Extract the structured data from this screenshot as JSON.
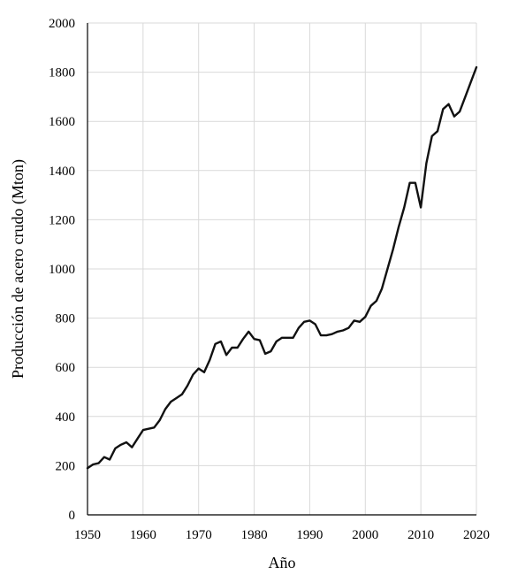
{
  "chart_data": {
    "type": "line",
    "title": "",
    "xlabel": "Año",
    "ylabel": "Producción de acero crudo (Mton)",
    "xlim": [
      1950,
      2020
    ],
    "ylim": [
      0,
      2000
    ],
    "x_ticks": [
      "1950",
      "1960",
      "1970",
      "1980",
      "1990",
      "2000",
      "2010",
      "2020"
    ],
    "y_ticks": [
      "0",
      "200",
      "400",
      "600",
      "800",
      "1000",
      "1200",
      "1400",
      "1600",
      "1800",
      "2000"
    ],
    "grid": true,
    "legend": "none",
    "series": [
      {
        "color": "#111111",
        "x": [
          1950,
          1951,
          1952,
          1953,
          1954,
          1955,
          1956,
          1957,
          1958,
          1959,
          1960,
          1961,
          1962,
          1963,
          1964,
          1965,
          1966,
          1967,
          1968,
          1969,
          1970,
          1971,
          1972,
          1973,
          1974,
          1975,
          1976,
          1977,
          1978,
          1979,
          1980,
          1981,
          1982,
          1983,
          1984,
          1985,
          1986,
          1987,
          1988,
          1989,
          1990,
          1991,
          1992,
          1993,
          1994,
          1995,
          1996,
          1997,
          1998,
          1999,
          2000,
          2001,
          2002,
          2003,
          2004,
          2005,
          2006,
          2007,
          2008,
          2009,
          2010,
          2011,
          2012,
          2013,
          2014,
          2015,
          2016,
          2017,
          2018,
          2019,
          2020
        ],
        "y": [
          190,
          205,
          210,
          235,
          225,
          270,
          285,
          295,
          275,
          310,
          345,
          350,
          355,
          385,
          430,
          460,
          475,
          490,
          525,
          570,
          595,
          580,
          630,
          695,
          705,
          650,
          680,
          680,
          715,
          745,
          715,
          710,
          655,
          665,
          705,
          720,
          720,
          720,
          760,
          785,
          790,
          775,
          730,
          730,
          735,
          745,
          750,
          760,
          790,
          785,
          805,
          850,
          870,
          920,
          1000,
          1080,
          1170,
          1250,
          1350,
          1350,
          1250,
          1430,
          1540,
          1560,
          1650,
          1670,
          1620,
          1640,
          1700,
          1760,
          1820
        ]
      }
    ]
  }
}
